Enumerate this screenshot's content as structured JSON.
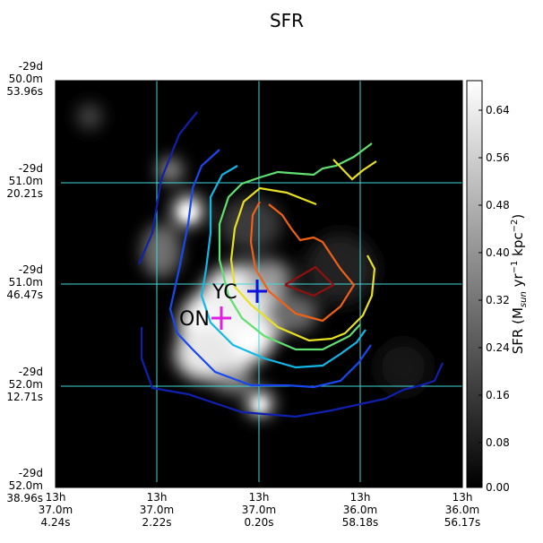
{
  "title": "SFR",
  "y_ticks": [
    [
      "-29d",
      "50.0m",
      "53.96s"
    ],
    [
      "-29d",
      "51.0m",
      "20.21s"
    ],
    [
      "-29d",
      "51.0m",
      "46.47s"
    ],
    [
      "-29d",
      "52.0m",
      "12.71s"
    ],
    [
      "-29d",
      "52.0m",
      "38.96s"
    ]
  ],
  "x_ticks": [
    [
      "13h",
      "37.0m",
      "4.24s"
    ],
    [
      "13h",
      "37.0m",
      "2.22s"
    ],
    [
      "13h",
      "37.0m",
      "0.20s"
    ],
    [
      "13h",
      "36.0m",
      "58.18s"
    ],
    [
      "13h",
      "36.0m",
      "56.17s"
    ]
  ],
  "colorbar": {
    "ticks": [
      "0.64",
      "0.56",
      "0.48",
      "0.40",
      "0.32",
      "0.24",
      "0.16",
      "0.08",
      "0.00"
    ],
    "label_main": "SFR (M",
    "label_sub1": "sun",
    "label_mid": " yr",
    "label_sup1": "−1",
    "label_mid2": " kpc",
    "label_sup2": "−2",
    "label_end": ")"
  },
  "markers": [
    {
      "label": "YC",
      "color": "#1010e0"
    },
    {
      "label": "ON",
      "color": "#e020e0"
    }
  ],
  "colors": {
    "grid": "#40d8d8",
    "contours": [
      "#1020b0",
      "#1848f0",
      "#10b8e8",
      "#60e070",
      "#e8e020",
      "#f06018",
      "#901010"
    ]
  }
}
